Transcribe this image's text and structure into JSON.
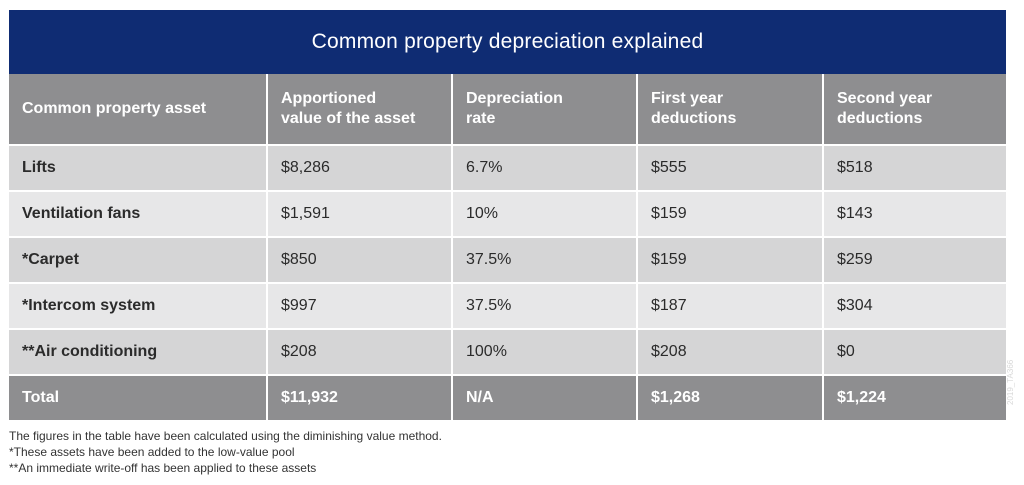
{
  "title": "Common property depreciation explained",
  "table": {
    "headers": [
      {
        "line1": "Common property asset",
        "line2": ""
      },
      {
        "line1": "Apportioned",
        "line2": "value of the asset"
      },
      {
        "line1": "Depreciation",
        "line2": "rate"
      },
      {
        "line1": "First year",
        "line2": "deductions"
      },
      {
        "line1": "Second year",
        "line2": "deductions"
      }
    ],
    "rows": [
      [
        "Lifts",
        "$8,286",
        "6.7%",
        "$555",
        "$518"
      ],
      [
        "Ventilation fans",
        "$1,591",
        "10%",
        "$159",
        "$143"
      ],
      [
        "*Carpet",
        "$850",
        "37.5%",
        "$159",
        "$259"
      ],
      [
        "*Intercom system",
        "$997",
        "37.5%",
        "$187",
        "$304"
      ],
      [
        "**Air conditioning",
        "$208",
        "100%",
        "$208",
        "$0"
      ]
    ],
    "total": [
      "Total",
      "$11,932",
      "N/A",
      "$1,268",
      "$1,224"
    ]
  },
  "notes": [
    "The figures in the table have been calculated using the diminishing value method.",
    "*These assets have been added to the low-value pool",
    "**An immediate write-off has been applied to these assets"
  ],
  "watermark": "2019_TA366",
  "colors": {
    "title_bg": "#0f2c73",
    "header_bg": "#8e8e90",
    "row_odd": "#d5d5d6",
    "row_even": "#e7e7e8"
  }
}
